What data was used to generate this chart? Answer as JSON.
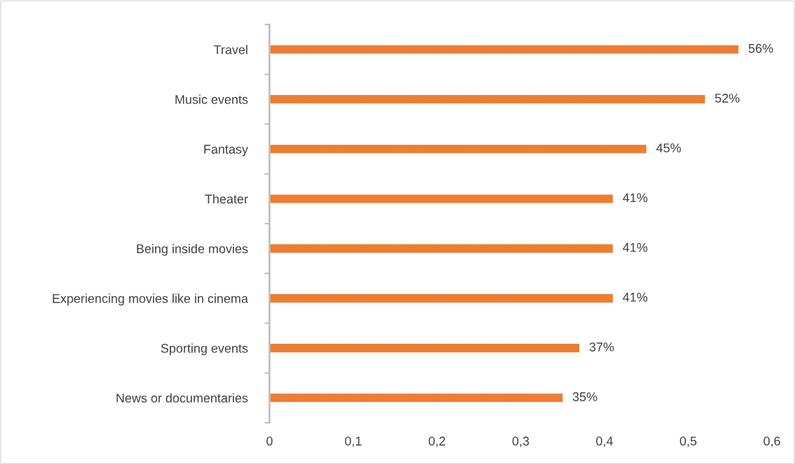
{
  "chart_data": {
    "type": "bar",
    "orientation": "horizontal",
    "categories": [
      "Travel",
      "Music events",
      "Fantasy",
      "Theater",
      "Being inside movies",
      "Experiencing movies like in cinema",
      "Sporting events",
      "News or documentaries"
    ],
    "values": [
      0.56,
      0.52,
      0.45,
      0.41,
      0.41,
      0.41,
      0.37,
      0.35
    ],
    "value_labels": [
      "56%",
      "52%",
      "45%",
      "41%",
      "41%",
      "41%",
      "37%",
      "35%"
    ],
    "color": "#ed7d31",
    "xlim": [
      0,
      0.6
    ],
    "xticks": [
      0,
      {
        "value": 0.1,
        "label": "0,1"
      },
      {
        "value": 0.2,
        "label": "0,2"
      },
      {
        "value": 0.3,
        "label": "0,3"
      },
      {
        "value": 0.4,
        "label": "0,4"
      },
      {
        "value": 0.5,
        "label": "0,5"
      },
      {
        "value": 0.6,
        "label": "0,6"
      }
    ],
    "grid": false,
    "legend": false
  }
}
